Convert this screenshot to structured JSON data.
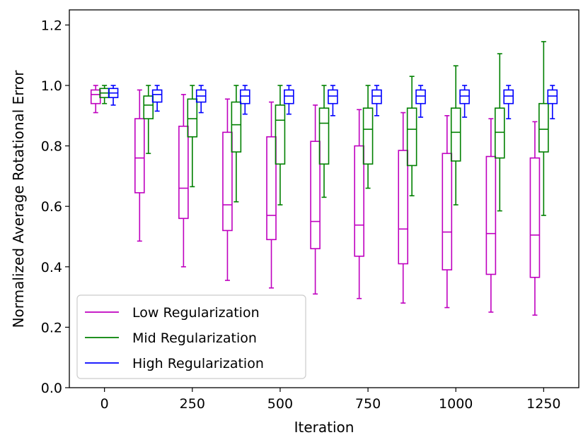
{
  "chart_data": {
    "type": "boxplot",
    "xlabel": "Iteration",
    "ylabel": "Normalized Average Rotational Error",
    "xlim": [
      -100,
      1350
    ],
    "ylim": [
      0.0,
      1.25
    ],
    "xticks": [
      0,
      250,
      500,
      750,
      1000,
      1250
    ],
    "xtick_labels": [
      "0",
      "250",
      "500",
      "750",
      "1000",
      "1250"
    ],
    "yticks": [
      0.0,
      0.2,
      0.4,
      0.6,
      0.8,
      1.0,
      1.2
    ],
    "ytick_labels": [
      "0.0",
      "0.2",
      "0.4",
      "0.6",
      "0.8",
      "1.0",
      "1.2"
    ],
    "legend_position": "lower-left",
    "iterations": [
      0,
      125,
      250,
      375,
      500,
      625,
      750,
      875,
      1000,
      1125,
      1250
    ],
    "series": [
      {
        "name": "Low Regularization",
        "color": "#bf00bf",
        "offset": -25,
        "boxes": [
          {
            "whislo": 0.91,
            "q1": 0.94,
            "med": 0.97,
            "q3": 0.985,
            "whishi": 1.0
          },
          {
            "whislo": 0.485,
            "q1": 0.645,
            "med": 0.76,
            "q3": 0.89,
            "whishi": 0.985
          },
          {
            "whislo": 0.4,
            "q1": 0.56,
            "med": 0.66,
            "q3": 0.865,
            "whishi": 0.97
          },
          {
            "whislo": 0.355,
            "q1": 0.52,
            "med": 0.605,
            "q3": 0.845,
            "whishi": 0.955
          },
          {
            "whislo": 0.33,
            "q1": 0.49,
            "med": 0.57,
            "q3": 0.83,
            "whishi": 0.945
          },
          {
            "whislo": 0.31,
            "q1": 0.46,
            "med": 0.55,
            "q3": 0.815,
            "whishi": 0.935
          },
          {
            "whislo": 0.295,
            "q1": 0.435,
            "med": 0.538,
            "q3": 0.8,
            "whishi": 0.92
          },
          {
            "whislo": 0.28,
            "q1": 0.41,
            "med": 0.525,
            "q3": 0.785,
            "whishi": 0.91
          },
          {
            "whislo": 0.265,
            "q1": 0.39,
            "med": 0.515,
            "q3": 0.775,
            "whishi": 0.9
          },
          {
            "whislo": 0.25,
            "q1": 0.375,
            "med": 0.51,
            "q3": 0.765,
            "whishi": 0.89
          },
          {
            "whislo": 0.24,
            "q1": 0.365,
            "med": 0.505,
            "q3": 0.76,
            "whishi": 0.88
          }
        ]
      },
      {
        "name": "Mid Regularization",
        "color": "#008000",
        "offset": 0,
        "boxes": [
          {
            "whislo": 0.94,
            "q1": 0.96,
            "med": 0.975,
            "q3": 0.99,
            "whishi": 1.0
          },
          {
            "whislo": 0.775,
            "q1": 0.89,
            "med": 0.935,
            "q3": 0.965,
            "whishi": 1.0
          },
          {
            "whislo": 0.665,
            "q1": 0.83,
            "med": 0.89,
            "q3": 0.955,
            "whishi": 1.0
          },
          {
            "whislo": 0.615,
            "q1": 0.78,
            "med": 0.87,
            "q3": 0.945,
            "whishi": 1.0
          },
          {
            "whislo": 0.605,
            "q1": 0.74,
            "med": 0.885,
            "q3": 0.935,
            "whishi": 1.0
          },
          {
            "whislo": 0.63,
            "q1": 0.74,
            "med": 0.875,
            "q3": 0.925,
            "whishi": 1.0
          },
          {
            "whislo": 0.66,
            "q1": 0.74,
            "med": 0.855,
            "q3": 0.925,
            "whishi": 1.0
          },
          {
            "whislo": 0.635,
            "q1": 0.735,
            "med": 0.855,
            "q3": 0.925,
            "whishi": 1.03
          },
          {
            "whislo": 0.605,
            "q1": 0.75,
            "med": 0.845,
            "q3": 0.925,
            "whishi": 1.065
          },
          {
            "whislo": 0.585,
            "q1": 0.76,
            "med": 0.845,
            "q3": 0.925,
            "whishi": 1.105
          },
          {
            "whislo": 0.57,
            "q1": 0.78,
            "med": 0.855,
            "q3": 0.94,
            "whishi": 1.145
          }
        ]
      },
      {
        "name": "High Regularization",
        "color": "#0000ff",
        "offset": 25,
        "boxes": [
          {
            "whislo": 0.935,
            "q1": 0.96,
            "med": 0.975,
            "q3": 0.99,
            "whishi": 1.0
          },
          {
            "whislo": 0.915,
            "q1": 0.945,
            "med": 0.97,
            "q3": 0.985,
            "whishi": 1.0
          },
          {
            "whislo": 0.91,
            "q1": 0.945,
            "med": 0.965,
            "q3": 0.985,
            "whishi": 1.0
          },
          {
            "whislo": 0.905,
            "q1": 0.94,
            "med": 0.965,
            "q3": 0.985,
            "whishi": 1.0
          },
          {
            "whislo": 0.905,
            "q1": 0.94,
            "med": 0.965,
            "q3": 0.985,
            "whishi": 1.0
          },
          {
            "whislo": 0.9,
            "q1": 0.94,
            "med": 0.965,
            "q3": 0.985,
            "whishi": 1.0
          },
          {
            "whislo": 0.9,
            "q1": 0.94,
            "med": 0.965,
            "q3": 0.985,
            "whishi": 1.0
          },
          {
            "whislo": 0.895,
            "q1": 0.94,
            "med": 0.965,
            "q3": 0.985,
            "whishi": 1.0
          },
          {
            "whislo": 0.895,
            "q1": 0.94,
            "med": 0.965,
            "q3": 0.985,
            "whishi": 1.0
          },
          {
            "whislo": 0.89,
            "q1": 0.94,
            "med": 0.965,
            "q3": 0.985,
            "whishi": 1.0
          },
          {
            "whislo": 0.89,
            "q1": 0.94,
            "med": 0.965,
            "q3": 0.985,
            "whishi": 1.0
          }
        ]
      }
    ]
  }
}
